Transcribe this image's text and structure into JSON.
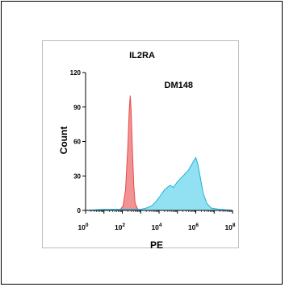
{
  "chart_data": {
    "type": "area",
    "title": "IL2RA",
    "annotation": "DM148",
    "xlabel": "PE",
    "ylabel": "Count",
    "x_scale": "log",
    "xlim": [
      1,
      100000000.0
    ],
    "ylim": [
      0,
      120
    ],
    "y_ticks": [
      "0",
      "30",
      "60",
      "90",
      "120"
    ],
    "x_tick_labels": [
      {
        "value": 1,
        "base": "10",
        "exp": "0"
      },
      {
        "value": 100,
        "base": "10",
        "exp": "2"
      },
      {
        "value": 10000,
        "base": "10",
        "exp": "4"
      },
      {
        "value": 1000000.0,
        "base": "10",
        "exp": "6"
      },
      {
        "value": 100000000.0,
        "base": "10",
        "exp": "8"
      }
    ],
    "series": [
      {
        "fill": "#f08080",
        "stroke": "#e84a4a",
        "points": [
          [
            1,
            0
          ],
          [
            10,
            0
          ],
          [
            50,
            0
          ],
          [
            80,
            1
          ],
          [
            110,
            4
          ],
          [
            150,
            18
          ],
          [
            200,
            55
          ],
          [
            240,
            88
          ],
          [
            270,
            100
          ],
          [
            300,
            88
          ],
          [
            350,
            55
          ],
          [
            420,
            22
          ],
          [
            500,
            6
          ],
          [
            700,
            1
          ],
          [
            1000,
            0
          ],
          [
            100000000.0,
            0
          ]
        ]
      },
      {
        "fill": "#7fdcf0",
        "stroke": "#1fb0d8",
        "points": [
          [
            1,
            0
          ],
          [
            10,
            1
          ],
          [
            50,
            1
          ],
          [
            200,
            1
          ],
          [
            1000,
            1
          ],
          [
            2000,
            2
          ],
          [
            4000,
            4
          ],
          [
            7000,
            8
          ],
          [
            12000,
            13
          ],
          [
            20000,
            18
          ],
          [
            40000,
            22
          ],
          [
            60000,
            20
          ],
          [
            100000,
            25
          ],
          [
            200000,
            30
          ],
          [
            400000,
            35
          ],
          [
            700000,
            42
          ],
          [
            1000000,
            46
          ],
          [
            1300000,
            40
          ],
          [
            1800000,
            28
          ],
          [
            2500000,
            15
          ],
          [
            4000000,
            6
          ],
          [
            7000000,
            2
          ],
          [
            20000000,
            1
          ],
          [
            100000000,
            0
          ]
        ]
      }
    ]
  }
}
